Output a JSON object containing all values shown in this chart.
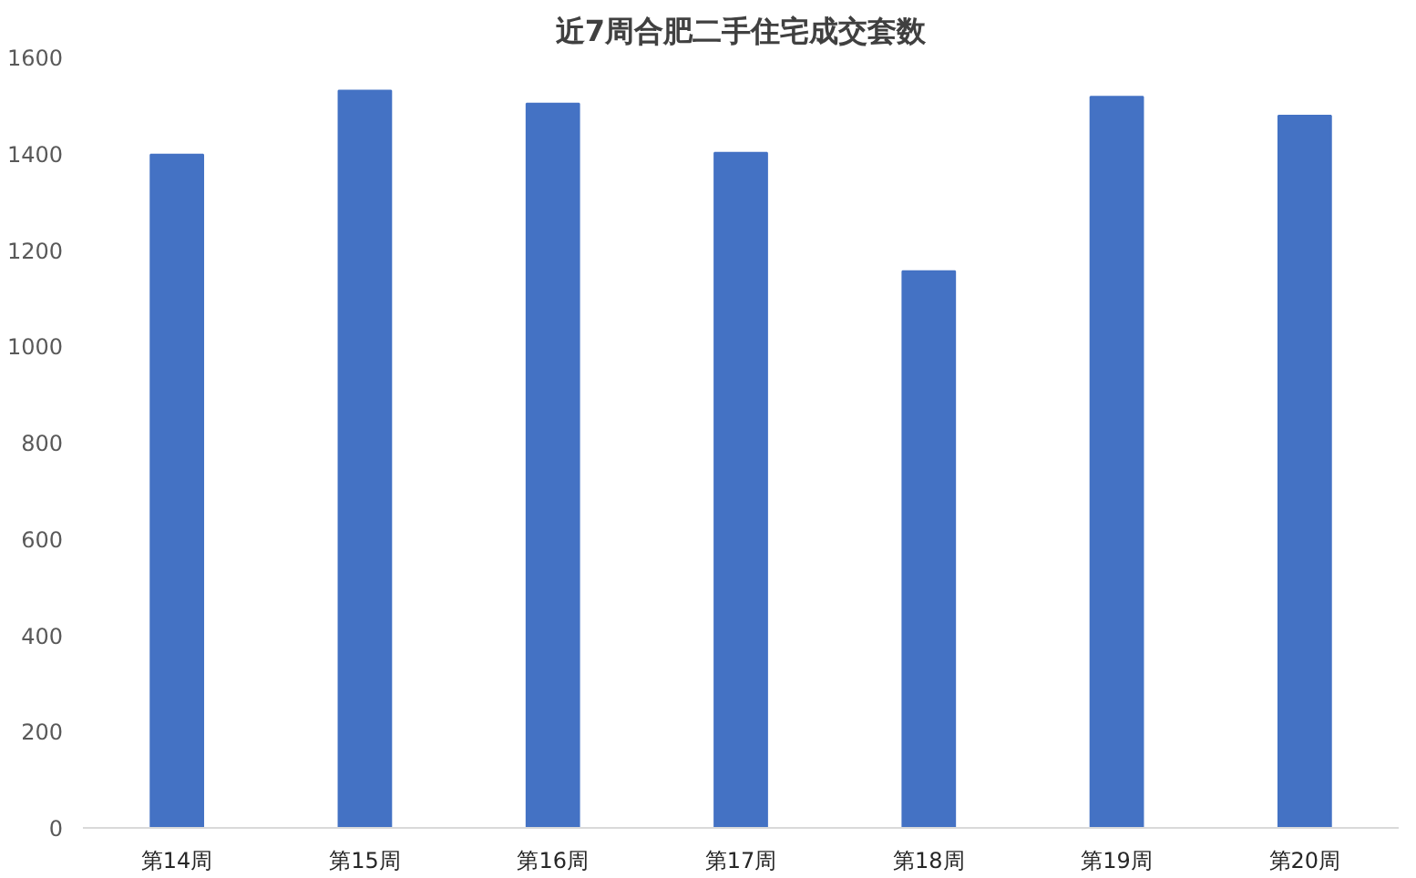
{
  "chart_data": {
    "type": "bar",
    "title": "近7周合肥二手住宅成交套数",
    "categories": [
      "第14周",
      "第15周",
      "第16周",
      "第17周",
      "第18周",
      "第19周",
      "第20周"
    ],
    "values": [
      1398,
      1531,
      1504,
      1402,
      1156,
      1518,
      1479
    ],
    "color": "#4472c4",
    "ylim": [
      0,
      1600
    ],
    "yticks": [
      0,
      200,
      400,
      600,
      800,
      1000,
      1200,
      1400,
      1600
    ],
    "grid": false
  }
}
